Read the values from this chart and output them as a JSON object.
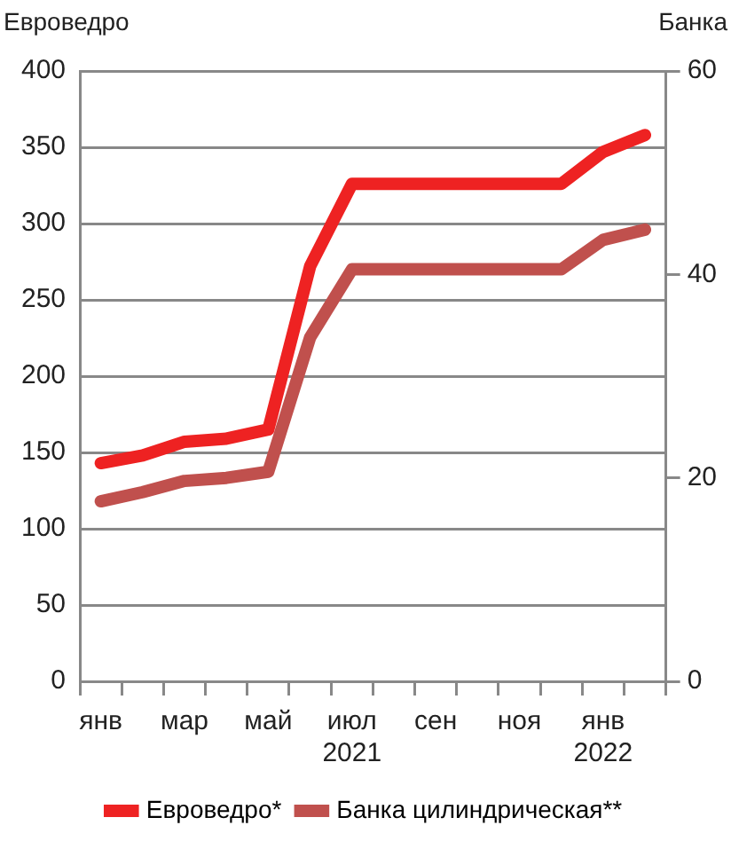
{
  "chart_data": {
    "type": "line",
    "ylabel": "Евроведро",
    "y2label": "Банка",
    "categories": [
      "янв",
      null,
      "мар",
      null,
      "май",
      null,
      "июл\n2021",
      null,
      "сен",
      null,
      "ноя",
      null,
      "янв\n2022",
      null
    ],
    "series": [
      {
        "name": "Евроведро*",
        "color": "#ee2222",
        "values": [
          143,
          148,
          157,
          159,
          165,
          272,
          326,
          326,
          326,
          326,
          326,
          326,
          347,
          358
        ]
      },
      {
        "name": "Банка цилиндрическая**",
        "color": "#c0504d",
        "axis": "y2",
        "values": [
          17.7,
          18.6,
          19.7,
          20,
          20.6,
          33.8,
          40.5,
          40.5,
          40.5,
          40.5,
          40.5,
          40.5,
          43.4,
          44.4
        ]
      }
    ],
    "ylim": [
      0,
      400
    ],
    "yticks": [
      0,
      50,
      100,
      150,
      200,
      250,
      300,
      350,
      400
    ],
    "y2lim": [
      0,
      60
    ],
    "y2ticks": [
      0,
      20,
      40,
      60
    ],
    "grid": "y",
    "legend": "bottom",
    "marker": "none",
    "line_style": "solid"
  }
}
